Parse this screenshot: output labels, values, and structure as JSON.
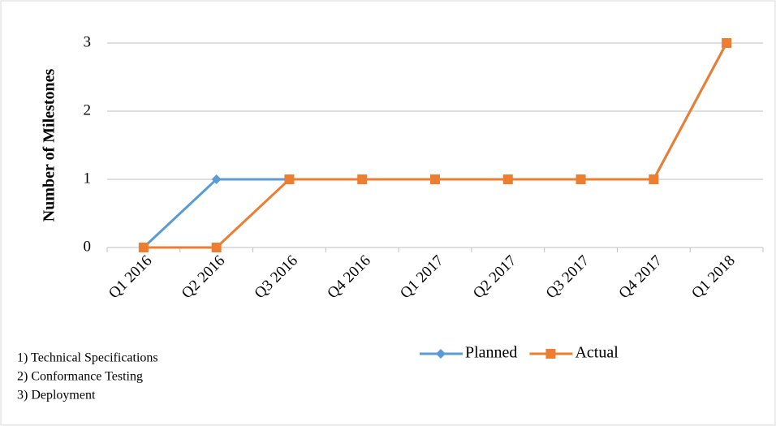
{
  "chart_data": {
    "type": "line",
    "ylabel": "Number of Milestones",
    "categories": [
      "Q1 2016",
      "Q2 2016",
      "Q3 2016",
      "Q4 2016",
      "Q1 2017",
      "Q2 2017",
      "Q3 2017",
      "Q4 2017",
      "Q1 2018"
    ],
    "series": [
      {
        "name": "Planned",
        "color": "#5b9bd5",
        "marker": "diamond",
        "values": [
          0,
          1,
          1,
          1,
          1,
          1,
          1,
          1,
          3
        ]
      },
      {
        "name": "Actual",
        "color": "#ed7d31",
        "marker": "square",
        "values": [
          0,
          0,
          1,
          1,
          1,
          1,
          1,
          1,
          3
        ]
      }
    ],
    "ylim": [
      0,
      3
    ],
    "yticks": [
      0,
      1,
      2,
      3
    ],
    "grid": true,
    "legend": "bottom",
    "annotations": [
      "1) Technical Specifications",
      "2) Conformance Testing",
      "3) Deployment"
    ]
  }
}
